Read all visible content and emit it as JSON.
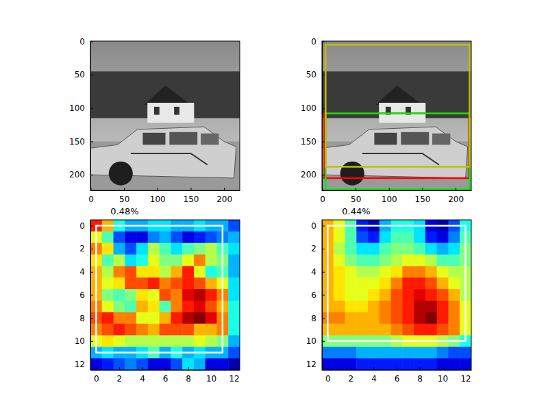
{
  "chart_data": [
    {
      "type": "image",
      "xlim": [
        -0.5,
        223.5
      ],
      "ylim": [
        223.5,
        -0.5
      ],
      "xticks": [
        0,
        50,
        100,
        150,
        200
      ],
      "yticks": [
        0,
        50,
        100,
        150,
        200
      ]
    },
    {
      "type": "image",
      "xlim": [
        -0.5,
        223.5
      ],
      "ylim": [
        223.5,
        -0.5
      ],
      "xticks": [
        0,
        50,
        100,
        150,
        200
      ],
      "yticks": [
        0,
        50,
        100,
        150,
        200
      ],
      "boxes": [
        {
          "x0": 3,
          "y0": 108,
          "x1": 220,
          "y1": 205,
          "color": "#ff0000"
        },
        {
          "x0": 5,
          "y0": 108,
          "x1": 221,
          "y1": 222,
          "color": "#00ee00"
        },
        {
          "x0": 5,
          "y0": 5,
          "x1": 221,
          "y1": 188,
          "color": "#bfbf00"
        }
      ]
    },
    {
      "type": "heatmap",
      "title": "0.48%",
      "xlim": [
        -0.5,
        12.5
      ],
      "ylim": [
        12.5,
        -0.5
      ],
      "xticks": [
        0,
        2,
        4,
        6,
        8,
        10,
        12
      ],
      "yticks": [
        0,
        2,
        4,
        6,
        8,
        10,
        12
      ],
      "color_range": [
        0,
        1
      ],
      "cells": [
        [
          0.85,
          0.7,
          0.4,
          0.3,
          0.3,
          0.35,
          0.35,
          0.3,
          0.3,
          0.35,
          0.3,
          0.3,
          0.2
        ],
        [
          0.6,
          0.45,
          0.2,
          0.1,
          0.1,
          0.25,
          0.3,
          0.2,
          0.1,
          0.15,
          0.2,
          0.25,
          0.3
        ],
        [
          0.75,
          0.65,
          0.3,
          0.2,
          0.35,
          0.55,
          0.45,
          0.35,
          0.45,
          0.5,
          0.55,
          0.45,
          0.35
        ],
        [
          0.65,
          0.45,
          0.55,
          0.35,
          0.4,
          0.6,
          0.5,
          0.5,
          0.6,
          0.75,
          0.55,
          0.5,
          0.3
        ],
        [
          0.7,
          0.55,
          0.75,
          0.8,
          0.65,
          0.65,
          0.55,
          0.7,
          0.85,
          0.6,
          0.4,
          0.45,
          0.3
        ],
        [
          0.7,
          0.6,
          0.65,
          0.8,
          0.8,
          0.85,
          0.75,
          0.8,
          0.85,
          0.8,
          0.7,
          0.6,
          0.35
        ],
        [
          0.7,
          0.5,
          0.45,
          0.5,
          0.65,
          0.6,
          0.8,
          0.75,
          0.9,
          0.95,
          0.85,
          0.75,
          0.35
        ],
        [
          0.75,
          0.6,
          0.5,
          0.45,
          0.7,
          0.65,
          0.45,
          0.75,
          0.85,
          0.9,
          0.8,
          0.7,
          0.4
        ],
        [
          0.8,
          0.85,
          0.75,
          0.75,
          0.6,
          0.6,
          0.7,
          0.85,
          0.95,
          1.0,
          0.9,
          0.75,
          0.4
        ],
        [
          0.75,
          0.8,
          0.85,
          0.8,
          0.75,
          0.7,
          0.8,
          0.8,
          0.8,
          0.7,
          0.7,
          0.75,
          0.4
        ],
        [
          0.6,
          0.65,
          0.6,
          0.55,
          0.55,
          0.55,
          0.55,
          0.55,
          0.55,
          0.6,
          0.55,
          0.5,
          0.3
        ],
        [
          0.3,
          0.35,
          0.3,
          0.3,
          0.35,
          0.45,
          0.3,
          0.4,
          0.3,
          0.35,
          0.3,
          0.3,
          0.2
        ],
        [
          0.1,
          0.15,
          0.2,
          0.25,
          0.2,
          0.1,
          0.1,
          0.2,
          0.35,
          0.3,
          0.1,
          0.1,
          0.05
        ]
      ],
      "boxes": [
        {
          "x0": 0,
          "y0": 0,
          "x1": 11,
          "y1": 11,
          "color": "#ffffff"
        }
      ]
    },
    {
      "type": "heatmap",
      "title": "0.44%",
      "xlim": [
        -0.5,
        12.5
      ],
      "ylim": [
        12.5,
        -0.5
      ],
      "xticks": [
        0,
        2,
        4,
        6,
        8,
        10,
        12
      ],
      "yticks": [
        0,
        2,
        4,
        6,
        8,
        10,
        12
      ],
      "color_range": [
        0,
        1
      ],
      "cells": [
        [
          0.7,
          0.6,
          0.45,
          0.15,
          0.05,
          0.3,
          0.4,
          0.4,
          0.35,
          0.1,
          0.05,
          0.2,
          0.4
        ],
        [
          0.7,
          0.6,
          0.45,
          0.2,
          0.15,
          0.35,
          0.45,
          0.45,
          0.35,
          0.15,
          0.1,
          0.25,
          0.45
        ],
        [
          0.7,
          0.55,
          0.45,
          0.35,
          0.35,
          0.45,
          0.5,
          0.5,
          0.45,
          0.35,
          0.3,
          0.35,
          0.5
        ],
        [
          0.7,
          0.6,
          0.5,
          0.45,
          0.45,
          0.5,
          0.55,
          0.6,
          0.6,
          0.55,
          0.45,
          0.45,
          0.5
        ],
        [
          0.7,
          0.65,
          0.6,
          0.55,
          0.55,
          0.6,
          0.65,
          0.75,
          0.75,
          0.7,
          0.6,
          0.55,
          0.55
        ],
        [
          0.7,
          0.65,
          0.6,
          0.6,
          0.6,
          0.65,
          0.75,
          0.85,
          0.85,
          0.8,
          0.7,
          0.6,
          0.55
        ],
        [
          0.7,
          0.65,
          0.6,
          0.6,
          0.65,
          0.7,
          0.8,
          0.85,
          0.9,
          0.85,
          0.8,
          0.7,
          0.55
        ],
        [
          0.7,
          0.7,
          0.65,
          0.65,
          0.7,
          0.75,
          0.8,
          0.85,
          0.95,
          0.95,
          0.85,
          0.75,
          0.6
        ],
        [
          0.75,
          0.75,
          0.7,
          0.7,
          0.7,
          0.75,
          0.8,
          0.85,
          0.95,
          1.0,
          0.85,
          0.75,
          0.6
        ],
        [
          0.7,
          0.7,
          0.7,
          0.7,
          0.7,
          0.7,
          0.75,
          0.8,
          0.85,
          0.85,
          0.8,
          0.75,
          0.6
        ],
        [
          0.5,
          0.5,
          0.5,
          0.5,
          0.5,
          0.5,
          0.55,
          0.6,
          0.6,
          0.6,
          0.55,
          0.5,
          0.4
        ],
        [
          0.25,
          0.25,
          0.25,
          0.3,
          0.3,
          0.3,
          0.3,
          0.3,
          0.3,
          0.3,
          0.25,
          0.2,
          0.2
        ],
        [
          0.1,
          0.1,
          0.1,
          0.15,
          0.15,
          0.15,
          0.15,
          0.15,
          0.15,
          0.15,
          0.1,
          0.1,
          0.1
        ]
      ],
      "boxes": [
        {
          "x0": 0,
          "y0": 0,
          "x1": 12,
          "y1": 10,
          "color": "#ffffff"
        }
      ]
    }
  ]
}
